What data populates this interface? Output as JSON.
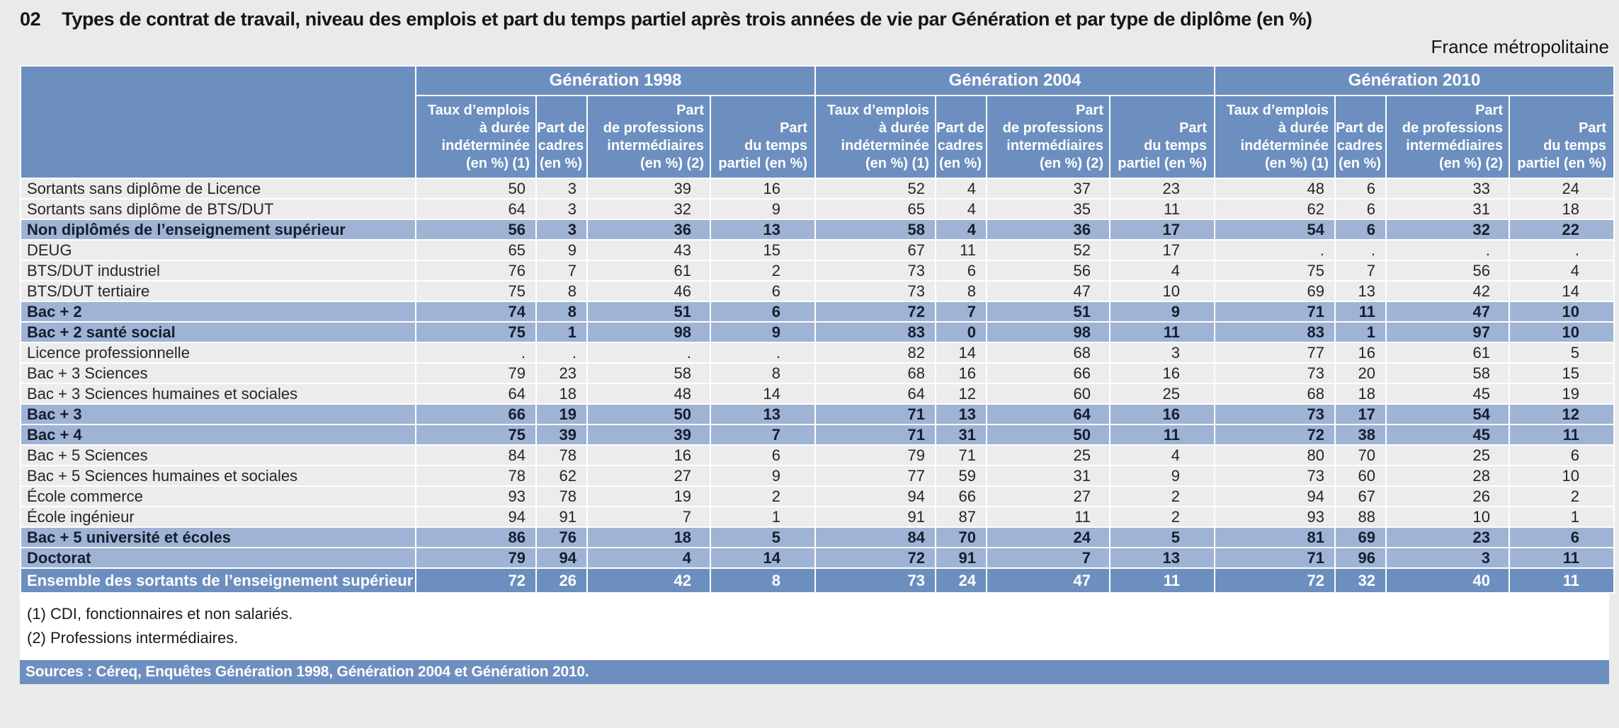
{
  "title": {
    "number": "02",
    "text": "Types de contrat de travail, niveau des emplois et part du temps partiel après trois années de vie par Génération et par type de diplôme (en %)",
    "region_note": "France métropolitaine"
  },
  "table": {
    "groups": [
      "Génération 1998",
      "Génération 2004",
      "Génération 2010"
    ],
    "columns": [
      "Taux d’emplois\nà durée\nindéterminée\n(en %) (1)",
      "Part de\ncadres\n(en %)",
      "Part\nde professions\nintermédiaires\n(en %) (2)",
      "Part\ndu temps\npartiel (en %)"
    ],
    "rows": [
      {
        "label": "Sortants sans diplôme de Licence",
        "type": "normal",
        "values": [
          "50",
          "3",
          "39",
          "16",
          "52",
          "4",
          "37",
          "23",
          "48",
          "6",
          "33",
          "24"
        ]
      },
      {
        "label": "Sortants sans diplôme de BTS/DUT",
        "type": "normal",
        "values": [
          "64",
          "3",
          "32",
          "9",
          "65",
          "4",
          "35",
          "11",
          "62",
          "6",
          "31",
          "18"
        ]
      },
      {
        "label": "Non diplômés de l’enseignement supérieur",
        "type": "section",
        "values": [
          "56",
          "3",
          "36",
          "13",
          "58",
          "4",
          "36",
          "17",
          "54",
          "6",
          "32",
          "22"
        ]
      },
      {
        "label": "DEUG",
        "type": "normal",
        "values": [
          "65",
          "9",
          "43",
          "15",
          "67",
          "11",
          "52",
          "17",
          ".",
          ".",
          ".",
          "."
        ]
      },
      {
        "label": "BTS/DUT industriel",
        "type": "normal",
        "values": [
          "76",
          "7",
          "61",
          "2",
          "73",
          "6",
          "56",
          "4",
          "75",
          "7",
          "56",
          "4"
        ]
      },
      {
        "label": "BTS/DUT tertiaire",
        "type": "normal",
        "values": [
          "75",
          "8",
          "46",
          "6",
          "73",
          "8",
          "47",
          "10",
          "69",
          "13",
          "42",
          "14"
        ]
      },
      {
        "label": "Bac + 2",
        "type": "section",
        "values": [
          "74",
          "8",
          "51",
          "6",
          "72",
          "7",
          "51",
          "9",
          "71",
          "11",
          "47",
          "10"
        ]
      },
      {
        "label": "Bac + 2 santé social",
        "type": "section",
        "values": [
          "75",
          "1",
          "98",
          "9",
          "83",
          "0",
          "98",
          "11",
          "83",
          "1",
          "97",
          "10"
        ]
      },
      {
        "label": "Licence professionnelle",
        "type": "normal",
        "values": [
          ".",
          ".",
          ".",
          ".",
          "82",
          "14",
          "68",
          "3",
          "77",
          "16",
          "61",
          "5"
        ]
      },
      {
        "label": "Bac + 3 Sciences",
        "type": "normal",
        "values": [
          "79",
          "23",
          "58",
          "8",
          "68",
          "16",
          "66",
          "16",
          "73",
          "20",
          "58",
          "15"
        ]
      },
      {
        "label": "Bac + 3 Sciences humaines et sociales",
        "type": "normal",
        "values": [
          "64",
          "18",
          "48",
          "14",
          "64",
          "12",
          "60",
          "25",
          "68",
          "18",
          "45",
          "19"
        ]
      },
      {
        "label": "Bac + 3",
        "type": "section",
        "values": [
          "66",
          "19",
          "50",
          "13",
          "71",
          "13",
          "64",
          "16",
          "73",
          "17",
          "54",
          "12"
        ]
      },
      {
        "label": "Bac + 4",
        "type": "section",
        "values": [
          "75",
          "39",
          "39",
          "7",
          "71",
          "31",
          "50",
          "11",
          "72",
          "38",
          "45",
          "11"
        ]
      },
      {
        "label": "Bac + 5 Sciences",
        "type": "normal",
        "values": [
          "84",
          "78",
          "16",
          "6",
          "79",
          "71",
          "25",
          "4",
          "80",
          "70",
          "25",
          "6"
        ]
      },
      {
        "label": "Bac + 5 Sciences humaines et sociales",
        "type": "normal",
        "values": [
          "78",
          "62",
          "27",
          "9",
          "77",
          "59",
          "31",
          "9",
          "73",
          "60",
          "28",
          "10"
        ]
      },
      {
        "label": "École commerce",
        "type": "normal",
        "values": [
          "93",
          "78",
          "19",
          "2",
          "94",
          "66",
          "27",
          "2",
          "94",
          "67",
          "26",
          "2"
        ]
      },
      {
        "label": "École ingénieur",
        "type": "normal",
        "values": [
          "94",
          "91",
          "7",
          "1",
          "91",
          "87",
          "11",
          "2",
          "93",
          "88",
          "10",
          "1"
        ]
      },
      {
        "label": "Bac + 5 université et écoles",
        "type": "section",
        "values": [
          "86",
          "76",
          "18",
          "5",
          "84",
          "70",
          "24",
          "5",
          "81",
          "69",
          "23",
          "6"
        ]
      },
      {
        "label": "Doctorat",
        "type": "section",
        "values": [
          "79",
          "94",
          "4",
          "14",
          "72",
          "91",
          "7",
          "13",
          "71",
          "96",
          "3",
          "11"
        ]
      },
      {
        "label": "Ensemble des sortants de l’enseignement supérieur",
        "type": "total",
        "values": [
          "72",
          "26",
          "42",
          "8",
          "73",
          "24",
          "47",
          "11",
          "72",
          "32",
          "40",
          "11"
        ]
      }
    ]
  },
  "footnotes": [
    "(1) CDI, fonctionnaires et non salariés.",
    "(2) Professions intermédiaires."
  ],
  "source": "Sources : Céreq, Enquêtes Génération 1998, Génération 2004 et Génération 2010.",
  "colors": {
    "header_blue": "#6d8fbf",
    "highlight_row_blue": "#9fb3d5",
    "row_gray": "#ececec",
    "page_background": "#eaeaeb",
    "footnote_background": "#ffffff",
    "header_text": "#ffffff",
    "section_text": "#161f2d"
  }
}
